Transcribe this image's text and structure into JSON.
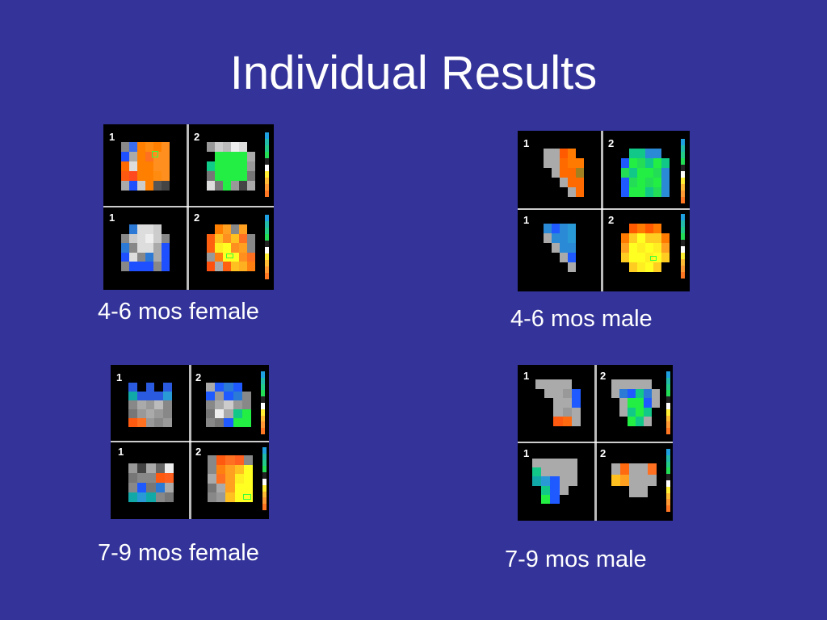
{
  "title": "Individual Results",
  "captions": {
    "f46": "4-6 mos female",
    "m46": "4-6 mos male",
    "f79": "7-9 mos female",
    "m79": "7-9 mos male"
  },
  "panel_labels": {
    "one": "1",
    "two": "2"
  },
  "colors": {
    "background": "#333399",
    "text": "#ffffff"
  }
}
